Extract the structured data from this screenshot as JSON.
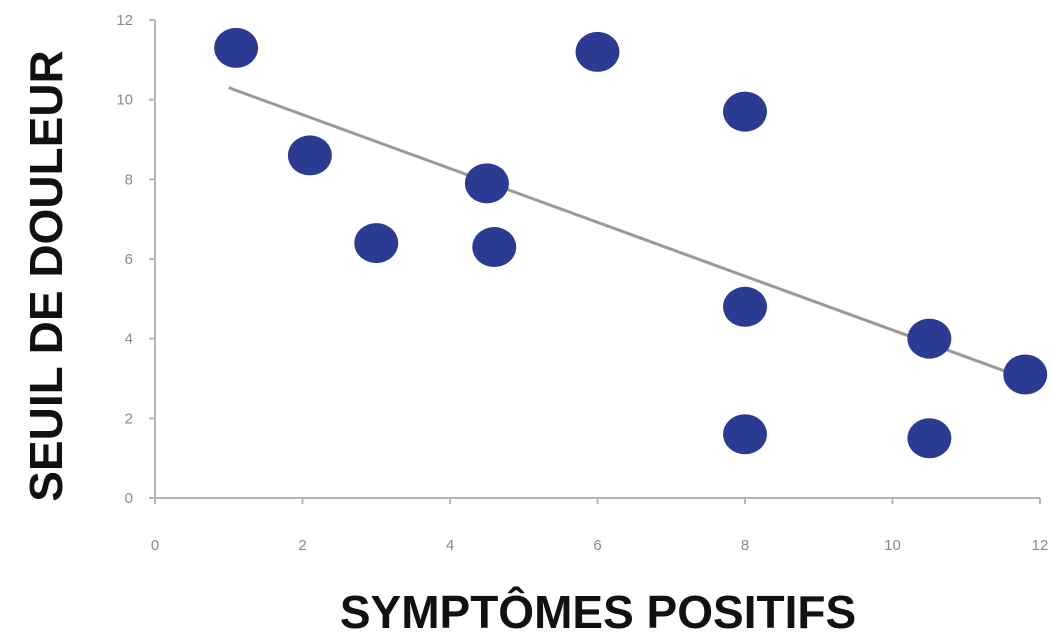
{
  "chart_data": {
    "type": "scatter",
    "title": "",
    "xlabel": "SYMPTÔMES POSITIFS",
    "ylabel": "SEUIL DE DOULEUR",
    "xlim": [
      0,
      12
    ],
    "ylim": [
      0,
      12
    ],
    "x_ticks": [
      "0",
      "2",
      "4",
      "6",
      "8",
      "10",
      "12"
    ],
    "y_ticks": [
      "0",
      "2",
      "4",
      "6",
      "8",
      "10",
      "12"
    ],
    "grid": false,
    "legend": "none",
    "series": [
      {
        "points": [
          {
            "x": 1.1,
            "y": 11.3
          },
          {
            "x": 2.1,
            "y": 8.6
          },
          {
            "x": 3.0,
            "y": 6.4
          },
          {
            "x": 4.5,
            "y": 7.9
          },
          {
            "x": 4.6,
            "y": 6.3
          },
          {
            "x": 6.0,
            "y": 11.2
          },
          {
            "x": 8.0,
            "y": 9.7
          },
          {
            "x": 8.0,
            "y": 4.8
          },
          {
            "x": 8.0,
            "y": 1.6
          },
          {
            "x": 10.5,
            "y": 4.0
          },
          {
            "x": 10.5,
            "y": 1.5
          },
          {
            "x": 11.8,
            "y": 3.1
          }
        ],
        "color": "#2b3b92"
      }
    ],
    "trendline": {
      "type": "linear",
      "x_start": 1.0,
      "y_start": 10.3,
      "x_end": 11.8,
      "y_end": 3.0,
      "color": "#9a9a9a"
    }
  }
}
